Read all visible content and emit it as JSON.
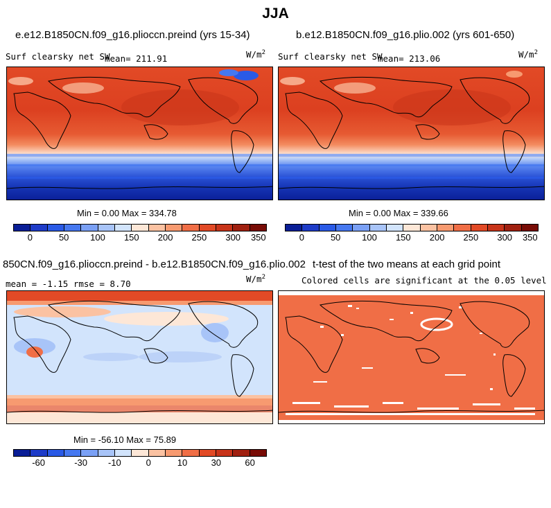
{
  "figure": {
    "season_title": "JJA"
  },
  "panel_a": {
    "title": "e.e12.B1850CN.f09_g16.plioccn.preind (yrs 15-34)",
    "variable": "Surf clearsky net SW",
    "mean_label": "mean= 211.91",
    "units": "W/m",
    "units_exp": "2",
    "minmax": "Min =    0.00 Max = 334.78"
  },
  "panel_b": {
    "title": "b.e12.B1850CN.f09_g16.plio.002 (yrs 601-650)",
    "variable": "Surf clearsky net SW",
    "mean_label": "mean= 213.06",
    "units": "W/m",
    "units_exp": "2",
    "minmax": "Min =    0.00 Max = 339.66"
  },
  "panel_c": {
    "title": "850CN.f09_g16.plioccn.preind - b.e12.B1850CN.f09_g16.plio.002",
    "stats": "mean =  -1.15     rmse =    8.70",
    "units": "W/m",
    "units_exp": "2",
    "minmax": "Min = -56.10 Max =  75.89"
  },
  "panel_d": {
    "title": "t-test of the two means at each grid point",
    "subtitle": "Colored cells are significant at the 0.05 level"
  },
  "colorbar_abs": {
    "colors": [
      "#0a1e96",
      "#1e3cc8",
      "#2a5ae6",
      "#4678f0",
      "#7aa0f5",
      "#a8c4f8",
      "#d2e4fc",
      "#fde7d7",
      "#fbc2a2",
      "#f79a70",
      "#f06e46",
      "#e24a26",
      "#c8341a",
      "#a02010",
      "#780c06"
    ],
    "tick_labels": [
      "0",
      "50",
      "100",
      "150",
      "200",
      "250",
      "300",
      "350"
    ]
  },
  "colorbar_diff": {
    "colors": [
      "#0a1e96",
      "#1e3cc8",
      "#2a5ae6",
      "#4678f0",
      "#7aa0f5",
      "#a8c4f8",
      "#d2e4fc",
      "#fde7d7",
      "#fbc2a2",
      "#f79a70",
      "#f06e46",
      "#e24a26",
      "#c8341a",
      "#a02010",
      "#780c06"
    ],
    "tick_labels": [
      "-60",
      "-30",
      "-10",
      "0",
      "10",
      "30",
      "60"
    ]
  }
}
